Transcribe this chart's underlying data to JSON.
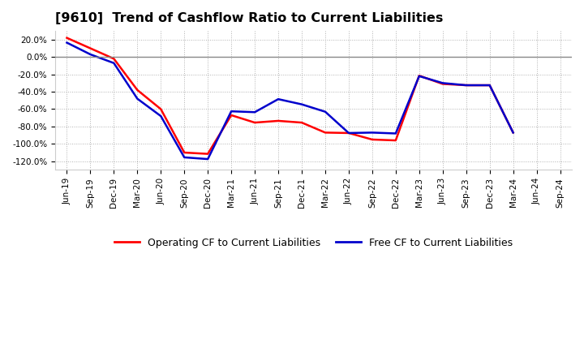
{
  "title": "[9610]  Trend of Cashflow Ratio to Current Liabilities",
  "x_labels": [
    "Jun-19",
    "Sep-19",
    "Dec-19",
    "Mar-20",
    "Jun-20",
    "Sep-20",
    "Dec-20",
    "Mar-21",
    "Jun-21",
    "Sep-21",
    "Dec-21",
    "Mar-22",
    "Jun-22",
    "Sep-22",
    "Dec-22",
    "Mar-23",
    "Jun-23",
    "Sep-23",
    "Dec-23",
    "Mar-24",
    "Jun-24",
    "Sep-24"
  ],
  "operating_cf": [
    0.22,
    0.1,
    -0.02,
    -0.38,
    -0.6,
    -1.1,
    -1.115,
    -0.67,
    -0.755,
    -0.735,
    -0.755,
    -0.87,
    -0.875,
    -0.95,
    -0.96,
    -0.215,
    -0.31,
    -0.325,
    -0.325,
    -0.87,
    null,
    null
  ],
  "free_cf": [
    0.165,
    0.03,
    -0.07,
    -0.48,
    -0.68,
    -1.155,
    -1.175,
    -0.625,
    -0.635,
    -0.485,
    -0.545,
    -0.63,
    -0.875,
    -0.87,
    -0.88,
    -0.22,
    -0.3,
    -0.325,
    -0.325,
    -0.87,
    null,
    null
  ],
  "ylim": [
    -1.3,
    0.3
  ],
  "yticks": [
    0.2,
    0.0,
    -0.2,
    -0.4,
    -0.6,
    -0.8,
    -1.0,
    -1.2
  ],
  "ytick_labels": [
    "20.0%",
    "0.0%",
    "-20.0%",
    "-40.0%",
    "-60.0%",
    "-80.0%",
    "-100.0%",
    "-120.0%"
  ],
  "operating_color": "#ff0000",
  "free_color": "#0000cc",
  "background_color": "#ffffff",
  "plot_bg_color": "#ffffff",
  "grid_color": "#b0b0b0",
  "line_width": 1.8,
  "title_fontsize": 11.5,
  "legend_fontsize": 9,
  "tick_fontsize": 7.5
}
